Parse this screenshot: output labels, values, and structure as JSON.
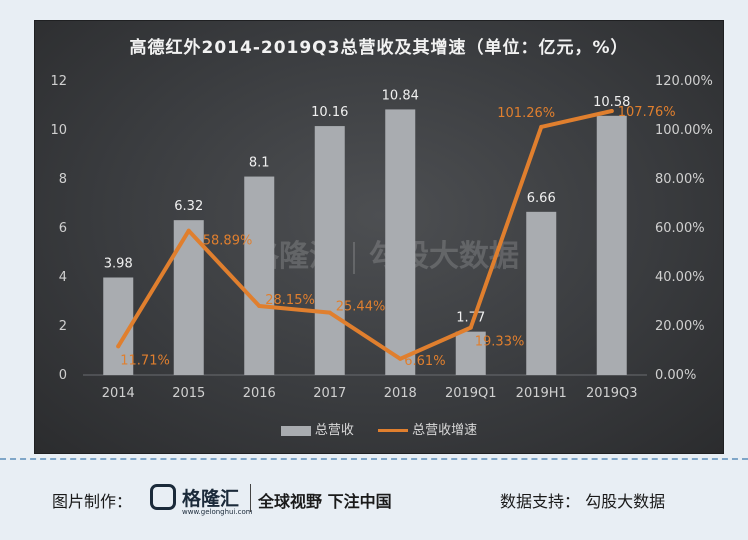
{
  "chart_data": {
    "type": "bar",
    "title": "高德红外2014-2019Q3总营收及其增速（单位：亿元，%）",
    "categories": [
      "2014",
      "2015",
      "2016",
      "2017",
      "2018",
      "2019Q1",
      "2019H1",
      "2019Q3"
    ],
    "series": [
      {
        "name": "总营收",
        "type": "bar",
        "axis": "left",
        "values": [
          3.98,
          6.32,
          8.1,
          10.16,
          10.84,
          1.77,
          6.66,
          10.58
        ],
        "labels": [
          "3.98",
          "6.32",
          "8.1",
          "10.16",
          "10.84",
          "1.77",
          "6.66",
          "10.58"
        ]
      },
      {
        "name": "总营收增速",
        "type": "line",
        "axis": "right",
        "values": [
          11.71,
          58.89,
          28.15,
          25.44,
          6.61,
          19.33,
          101.26,
          107.76
        ],
        "labels": [
          "11.71%",
          "58.89%",
          "28.15%",
          "25.44%",
          "6.61%",
          "19.33%",
          "101.26%",
          "107.76%"
        ]
      }
    ],
    "ylim_left": [
      0,
      12
    ],
    "yticks_left": [
      "0",
      "2",
      "4",
      "6",
      "8",
      "10",
      "12"
    ],
    "ylim_right": [
      0,
      120
    ],
    "yticks_right": [
      "0.00%",
      "20.00%",
      "40.00%",
      "60.00%",
      "80.00%",
      "100.00%",
      "120.00%"
    ],
    "grid": false,
    "legend_position": "bottom",
    "colors": {
      "bar": "#a9acb0",
      "line": "#e07f2e",
      "bar_label": "#f0f0f0",
      "line_label": "#e07f2e",
      "axis_text": "#d0d0d0"
    }
  },
  "watermark": {
    "brand": "格隆汇",
    "source": "勾股大数据"
  },
  "footer": {
    "credit": "图片制作：",
    "logo_text": "格隆汇",
    "logo_sub": "www.gelonghui.com",
    "slogan": "全球视野 下注中国",
    "source": "数据支持：  勾股大数据"
  }
}
